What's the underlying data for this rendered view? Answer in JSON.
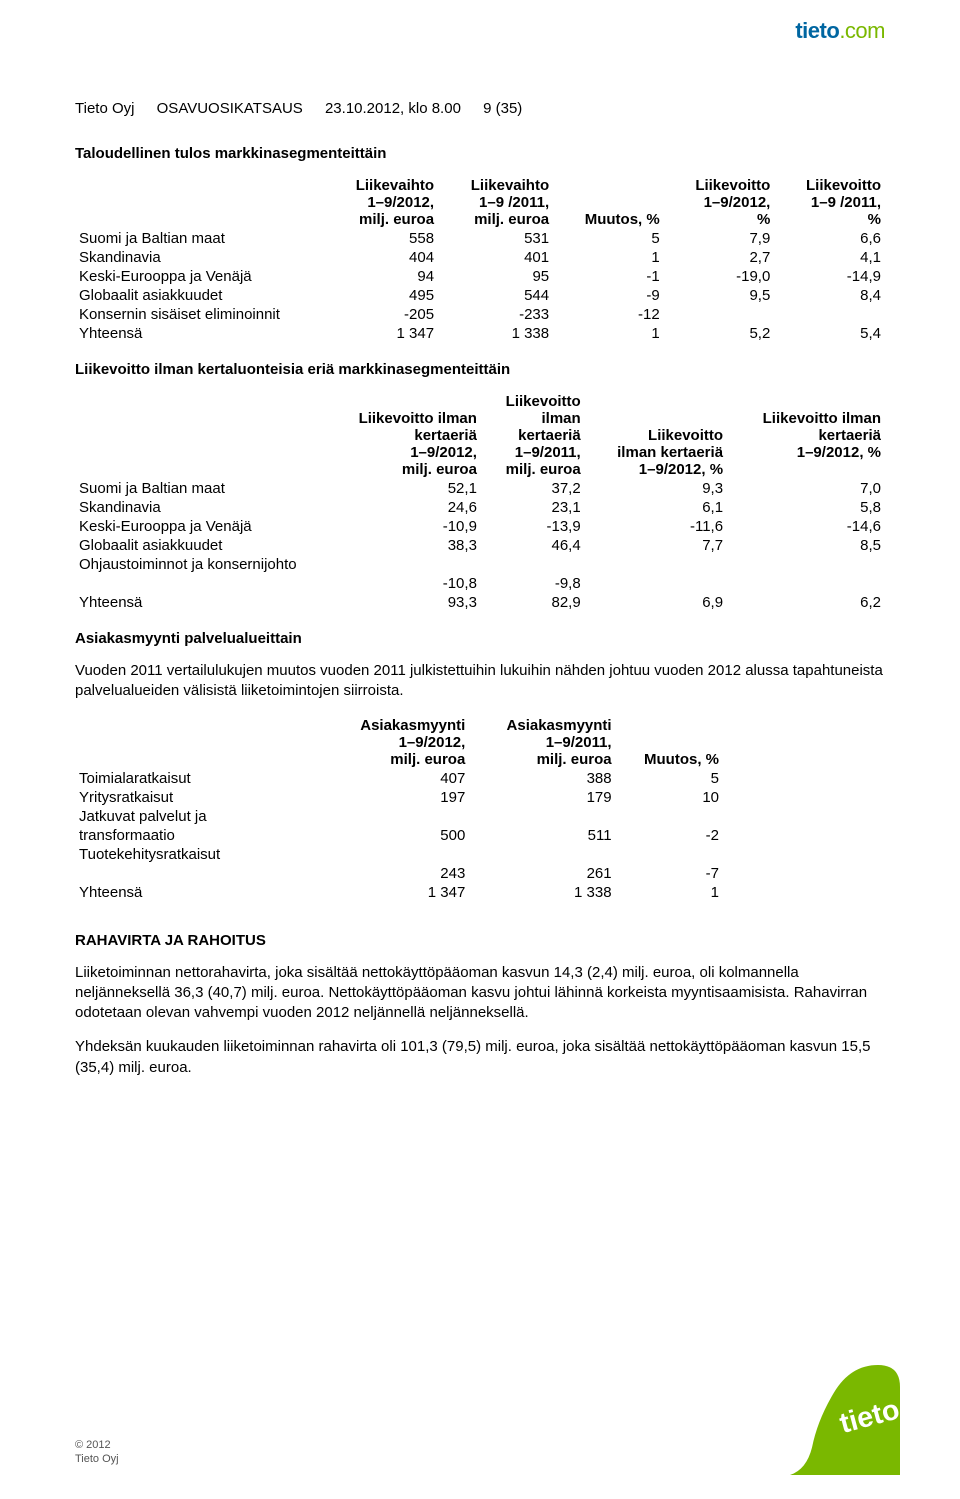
{
  "brand": {
    "part1": "tieto",
    "part2": ".com"
  },
  "header": {
    "company": "Tieto Oyj",
    "docType": "OSAVUOSIKATSAUS",
    "dateTime": "23.10.2012, klo 8.00",
    "pageRef": "9 (35)"
  },
  "section1": {
    "title": "Taloudellinen tulos markkinasegmenteittäin",
    "cols": [
      "Liikevaihto 1–9/2012, milj. euroa",
      "Liikevaihto 1–9 /2011, milj. euroa",
      "Muutos, %",
      "Liikevoitto 1–9/2012, %",
      "Liikevoitto 1–9 /2011, %"
    ],
    "colParts": {
      "c1": [
        "Liikevaihto",
        "1–9/2012,",
        "milj. euroa"
      ],
      "c2": [
        "Liikevaihto",
        "1–9 /2011,",
        "milj. euroa"
      ],
      "c3": [
        "",
        "",
        "Muutos, %"
      ],
      "c4": [
        "Liikevoitto",
        "1–9/2012,",
        "%"
      ],
      "c5": [
        "Liikevoitto",
        "1–9 /2011,",
        "%"
      ]
    },
    "rows": [
      {
        "label": "Suomi ja Baltian maat",
        "v": [
          "558",
          "531",
          "5",
          "7,9",
          "6,6"
        ]
      },
      {
        "label": "Skandinavia",
        "v": [
          "404",
          "401",
          "1",
          "2,7",
          "4,1"
        ]
      },
      {
        "label": "Keski-Eurooppa ja Venäjä",
        "v": [
          "94",
          "95",
          "-1",
          "-19,0",
          "-14,9"
        ]
      },
      {
        "label": "Globaalit asiakkuudet",
        "v": [
          "495",
          "544",
          "-9",
          "9,5",
          "8,4"
        ]
      },
      {
        "label": "Konsernin sisäiset eliminoinnit",
        "v": [
          "-205",
          "-233",
          "-12",
          "",
          ""
        ]
      },
      {
        "label": "Yhteensä",
        "v": [
          "1 347",
          "1 338",
          "1",
          "5,2",
          "5,4"
        ]
      }
    ]
  },
  "section2": {
    "title": "Liikevoitto ilman kertaluonteisia eriä markkinasegmenteittäin",
    "colParts": {
      "c1": [
        "Liikevoitto ilman",
        "kertaeriä",
        "1–9/2012,",
        "milj. euroa"
      ],
      "c2": [
        "Liikevoitto",
        "ilman",
        "kertaeriä",
        "1–9/2011,",
        "milj. euroa"
      ],
      "c3": [
        "",
        "",
        "Liikevoitto",
        "ilman kertaeriä",
        "1–9/2012, %"
      ],
      "c4": [
        "",
        "Liikevoitto ilman",
        "kertaeriä",
        "1–9/2012, %",
        ""
      ]
    },
    "rows": [
      {
        "label": "Suomi ja Baltian maat",
        "v": [
          "52,1",
          "37,2",
          "9,3",
          "7,0"
        ]
      },
      {
        "label": "Skandinavia",
        "v": [
          "24,6",
          "23,1",
          "6,1",
          "5,8"
        ]
      },
      {
        "label": "Keski-Eurooppa ja Venäjä",
        "v": [
          "-10,9",
          "-13,9",
          "-11,6",
          "-14,6"
        ]
      },
      {
        "label": "Globaalit asiakkuudet",
        "v": [
          "38,3",
          "46,4",
          "7,7",
          "8,5"
        ]
      },
      {
        "label": "Ohjaustoiminnot ja konsernijohto",
        "v": [
          "",
          "",
          "",
          ""
        ]
      },
      {
        "label": "",
        "v": [
          "-10,8",
          "-9,8",
          "",
          ""
        ]
      },
      {
        "label": "Yhteensä",
        "v": [
          "93,3",
          "82,9",
          "6,9",
          "6,2"
        ]
      }
    ]
  },
  "section3": {
    "title": "Asiakasmyynti palvelualueittain",
    "para": "Vuoden 2011 vertailulukujen muutos vuoden 2011 julkistettuihin lukuihin nähden johtuu vuoden 2012 alussa tapahtuneista palvelualueiden välisistä liiketoimintojen siirroista.",
    "colParts": {
      "c1": [
        "Asiakasmyynti",
        "1–9/2012,",
        "milj. euroa"
      ],
      "c2": [
        "Asiakasmyynti",
        "1–9/2011,",
        "milj. euroa"
      ],
      "c3": [
        "",
        "",
        "Muutos, %"
      ]
    },
    "rows": [
      {
        "label": "Toimialaratkaisut",
        "v": [
          "407",
          "388",
          "5"
        ]
      },
      {
        "label": "Yritysratkaisut",
        "v": [
          "197",
          "179",
          "10"
        ]
      },
      {
        "label": "Jatkuvat palvelut ja",
        "v": [
          "",
          "",
          ""
        ]
      },
      {
        "label": "transformaatio",
        "v": [
          "500",
          "511",
          "-2"
        ]
      },
      {
        "label": "Tuotekehitysratkaisut",
        "v": [
          "",
          "",
          ""
        ]
      },
      {
        "label": "",
        "v": [
          "243",
          "261",
          "-7"
        ]
      },
      {
        "label": "Yhteensä",
        "v": [
          "1 347",
          "1 338",
          "1"
        ]
      }
    ]
  },
  "section4": {
    "title": "RAHAVIRTA JA RAHOITUS",
    "p1": "Liiketoiminnan nettorahavirta, joka sisältää nettokäyttöpääoman kasvun 14,3 (2,4) milj. euroa, oli kolmannella neljänneksellä 36,3 (40,7) milj. euroa. Nettokäyttöpääoman kasvu johtui lähinnä korkeista myyntisaamisista. Rahavirran odotetaan olevan vahvempi vuoden 2012 neljännellä neljänneksellä.",
    "p2": "Yhdeksän kuukauden liiketoiminnan rahavirta oli 101,3 (79,5) milj. euroa, joka sisältää nettokäyttöpääoman kasvun 15,5 (35,4) milj. euroa."
  },
  "footer": {
    "year": "© 2012",
    "company": "Tieto Oyj"
  },
  "colors": {
    "brandBlue": "#0066a1",
    "brandGreen": "#7ab800",
    "text": "#000000",
    "bg": "#ffffff",
    "footerText": "#555555"
  }
}
